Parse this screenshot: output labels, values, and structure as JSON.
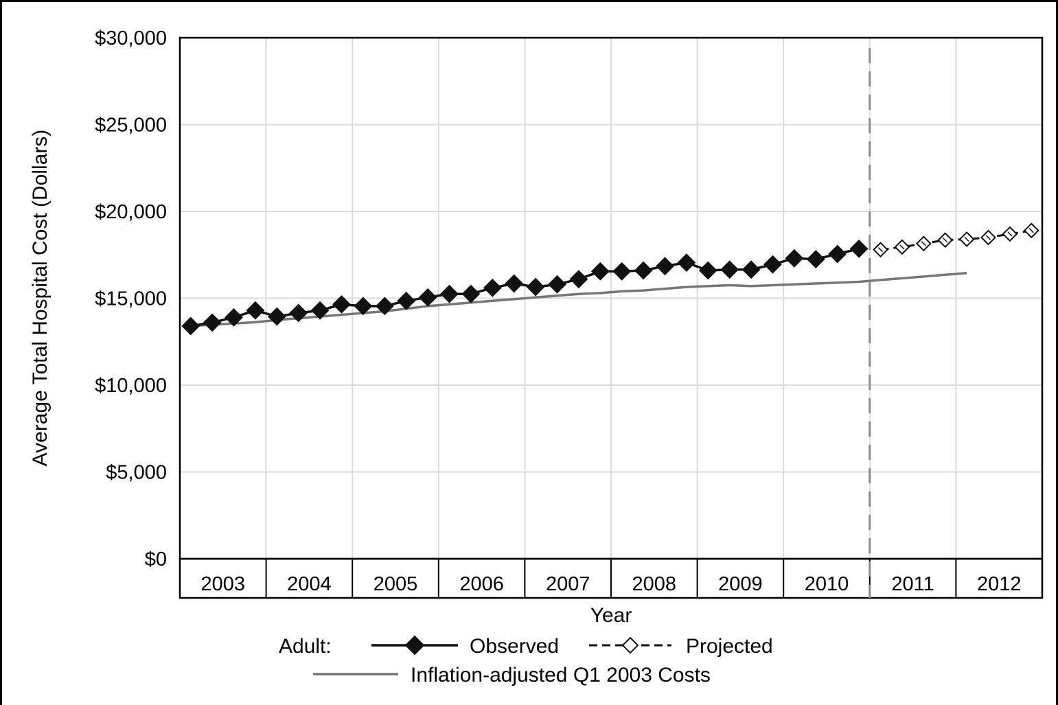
{
  "chart_data": {
    "type": "line",
    "xlabel": "Year",
    "ylabel": "Average Total Hospital Cost (Dollars)",
    "ylim": [
      0,
      30000
    ],
    "y_ticks": [
      0,
      5000,
      10000,
      15000,
      20000,
      25000,
      30000
    ],
    "y_tick_labels": [
      "$0",
      "$5,000",
      "$10,000",
      "$15,000",
      "$20,000",
      "$25,000",
      "$30,000"
    ],
    "x_categories": [
      "2003",
      "2004",
      "2005",
      "2006",
      "2007",
      "2008",
      "2009",
      "2010",
      "2011",
      "2012"
    ],
    "x_unit": "quarter",
    "projection_start": "2011 Q1",
    "grid": true,
    "legend": {
      "placement": "bottom",
      "group_label": "Adult:",
      "entries": [
        "Observed",
        "Projected",
        "Inflation-adjusted Q1 2003 Costs"
      ]
    },
    "series": [
      {
        "name": "Observed",
        "style": "solid-filled-diamond",
        "color": "#111111",
        "x": [
          "2003 Q1",
          "2003 Q2",
          "2003 Q3",
          "2003 Q4",
          "2004 Q1",
          "2004 Q2",
          "2004 Q3",
          "2004 Q4",
          "2005 Q1",
          "2005 Q2",
          "2005 Q3",
          "2005 Q4",
          "2006 Q1",
          "2006 Q2",
          "2006 Q3",
          "2006 Q4",
          "2007 Q1",
          "2007 Q2",
          "2007 Q3",
          "2007 Q4",
          "2008 Q1",
          "2008 Q2",
          "2008 Q3",
          "2008 Q4",
          "2009 Q1",
          "2009 Q2",
          "2009 Q3",
          "2009 Q4",
          "2010 Q1",
          "2010 Q2",
          "2010 Q3",
          "2010 Q4"
        ],
        "values": [
          13400,
          13600,
          13900,
          14300,
          13950,
          14150,
          14300,
          14650,
          14550,
          14550,
          14850,
          15050,
          15250,
          15250,
          15600,
          15850,
          15650,
          15800,
          16100,
          16550,
          16550,
          16600,
          16850,
          17050,
          16600,
          16650,
          16650,
          16950,
          17300,
          17250,
          17550,
          17850
        ]
      },
      {
        "name": "Projected",
        "style": "dashed-open-diamond",
        "color": "#111111",
        "x": [
          "2011 Q1",
          "2011 Q2",
          "2011 Q3",
          "2011 Q4",
          "2012 Q1",
          "2012 Q2",
          "2012 Q3",
          "2012 Q4"
        ],
        "values": [
          17800,
          17950,
          18150,
          18350,
          18400,
          18500,
          18700,
          18900
        ]
      },
      {
        "name": "Inflation-adjusted Q1 2003 Costs",
        "style": "solid-gray",
        "color": "#777777",
        "x": [
          "2003 Q1",
          "2003 Q2",
          "2003 Q3",
          "2003 Q4",
          "2004 Q1",
          "2004 Q2",
          "2004 Q3",
          "2004 Q4",
          "2005 Q1",
          "2005 Q2",
          "2005 Q3",
          "2005 Q4",
          "2006 Q1",
          "2006 Q2",
          "2006 Q3",
          "2006 Q4",
          "2007 Q1",
          "2007 Q2",
          "2007 Q3",
          "2007 Q4",
          "2008 Q1",
          "2008 Q2",
          "2008 Q3",
          "2008 Q4",
          "2009 Q1",
          "2009 Q2",
          "2009 Q3",
          "2009 Q4",
          "2010 Q1",
          "2010 Q2",
          "2010 Q3",
          "2010 Q4",
          "2011 Q1",
          "2011 Q2",
          "2011 Q3",
          "2011 Q4",
          "2012 Q1"
        ],
        "values": [
          13400,
          13480,
          13550,
          13620,
          13750,
          13850,
          13950,
          14050,
          14150,
          14250,
          14400,
          14550,
          14650,
          14750,
          14850,
          14950,
          15050,
          15150,
          15250,
          15300,
          15400,
          15450,
          15550,
          15650,
          15700,
          15750,
          15700,
          15750,
          15800,
          15850,
          15900,
          15950,
          16050,
          16150,
          16250,
          16350,
          16450
        ]
      }
    ]
  }
}
